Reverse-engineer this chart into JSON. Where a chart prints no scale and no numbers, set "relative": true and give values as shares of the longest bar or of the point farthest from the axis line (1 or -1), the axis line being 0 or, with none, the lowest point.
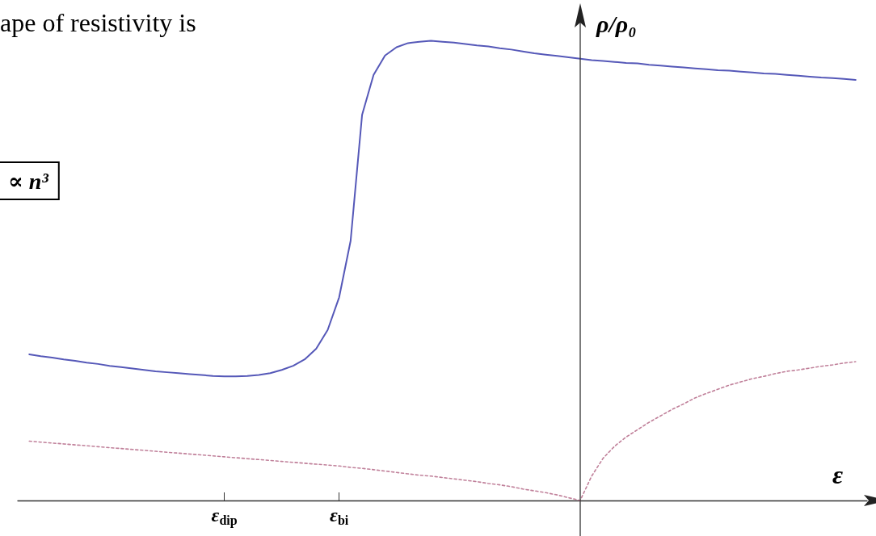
{
  "chart_data": {
    "type": "line",
    "relative": true,
    "xlabel": "ε",
    "ylabel": "ρ/ρ₀",
    "annotations": [
      "ape of resistivity is",
      "∝ n³"
    ],
    "categories": [
      null,
      null,
      null,
      null,
      null,
      null,
      null,
      null,
      null,
      null,
      null,
      null,
      null,
      null,
      null,
      null,
      null,
      null,
      "ε$_{dip}$",
      null,
      null,
      null,
      null,
      null,
      null,
      null,
      null,
      null,
      "ε$_{bi}$",
      null,
      null,
      null,
      null,
      null,
      null,
      null,
      null,
      null,
      null,
      null,
      null,
      null,
      null,
      null,
      null,
      null,
      null,
      null,
      null,
      null,
      null,
      null,
      null,
      null,
      null,
      null,
      null,
      null,
      null,
      null,
      null,
      null,
      null,
      null,
      null,
      null,
      null,
      null,
      null,
      null,
      null,
      null,
      null,
      null,
      null
    ],
    "series": [
      {
        "color": "#5558b8",
        "line_style": "solid",
        "values": [
          null,
          0.318,
          0.314,
          0.311,
          0.307,
          0.304,
          0.3,
          0.297,
          0.293,
          0.29,
          0.287,
          0.284,
          0.281,
          0.279,
          0.277,
          0.275,
          0.273,
          0.271,
          0.27,
          0.27,
          0.271,
          0.273,
          0.277,
          0.284,
          0.293,
          0.307,
          0.33,
          0.371,
          0.442,
          0.565,
          0.839,
          0.926,
          0.968,
          0.986,
          0.995,
          0.998,
          1,
          0.998,
          0.996,
          0.993,
          0.99,
          0.988,
          0.984,
          0.981,
          0.977,
          0.973,
          0.97,
          0.967,
          0.964,
          0.961,
          0.958,
          0.956,
          0.954,
          0.952,
          0.951,
          0.948,
          0.946,
          0.944,
          0.942,
          0.94,
          0.938,
          0.936,
          0.935,
          0.933,
          0.931,
          0.929,
          0.928,
          0.926,
          0.924,
          0.922,
          0.92,
          0.919,
          0.917,
          0.915,
          null
        ]
      },
      {
        "color": "#c0809a",
        "line_style": "dotted",
        "values": [
          null,
          0.129,
          0.127,
          0.125,
          0.123,
          0.121,
          0.119,
          0.117,
          0.115,
          0.113,
          0.111,
          0.109,
          0.107,
          0.105,
          0.103,
          0.101,
          0.099,
          0.097,
          0.095,
          0.093,
          0.091,
          0.089,
          0.087,
          0.085,
          0.083,
          0.081,
          0.079,
          0.077,
          0.075,
          0.072,
          0.07,
          0.067,
          0.064,
          0.061,
          0.058,
          0.055,
          0.053,
          0.05,
          0.047,
          0.044,
          0.041,
          0.037,
          0.034,
          0.03,
          0.025,
          0.021,
          0.017,
          0.012,
          0.006,
          0,
          0.053,
          0.092,
          0.118,
          0.138,
          0.154,
          0.17,
          0.184,
          0.198,
          0.21,
          0.223,
          0.233,
          0.242,
          0.251,
          0.258,
          0.265,
          0.27,
          0.276,
          0.281,
          0.284,
          0.288,
          0.292,
          0.295,
          0.299,
          0.302,
          null
        ]
      }
    ],
    "marker": "none"
  }
}
